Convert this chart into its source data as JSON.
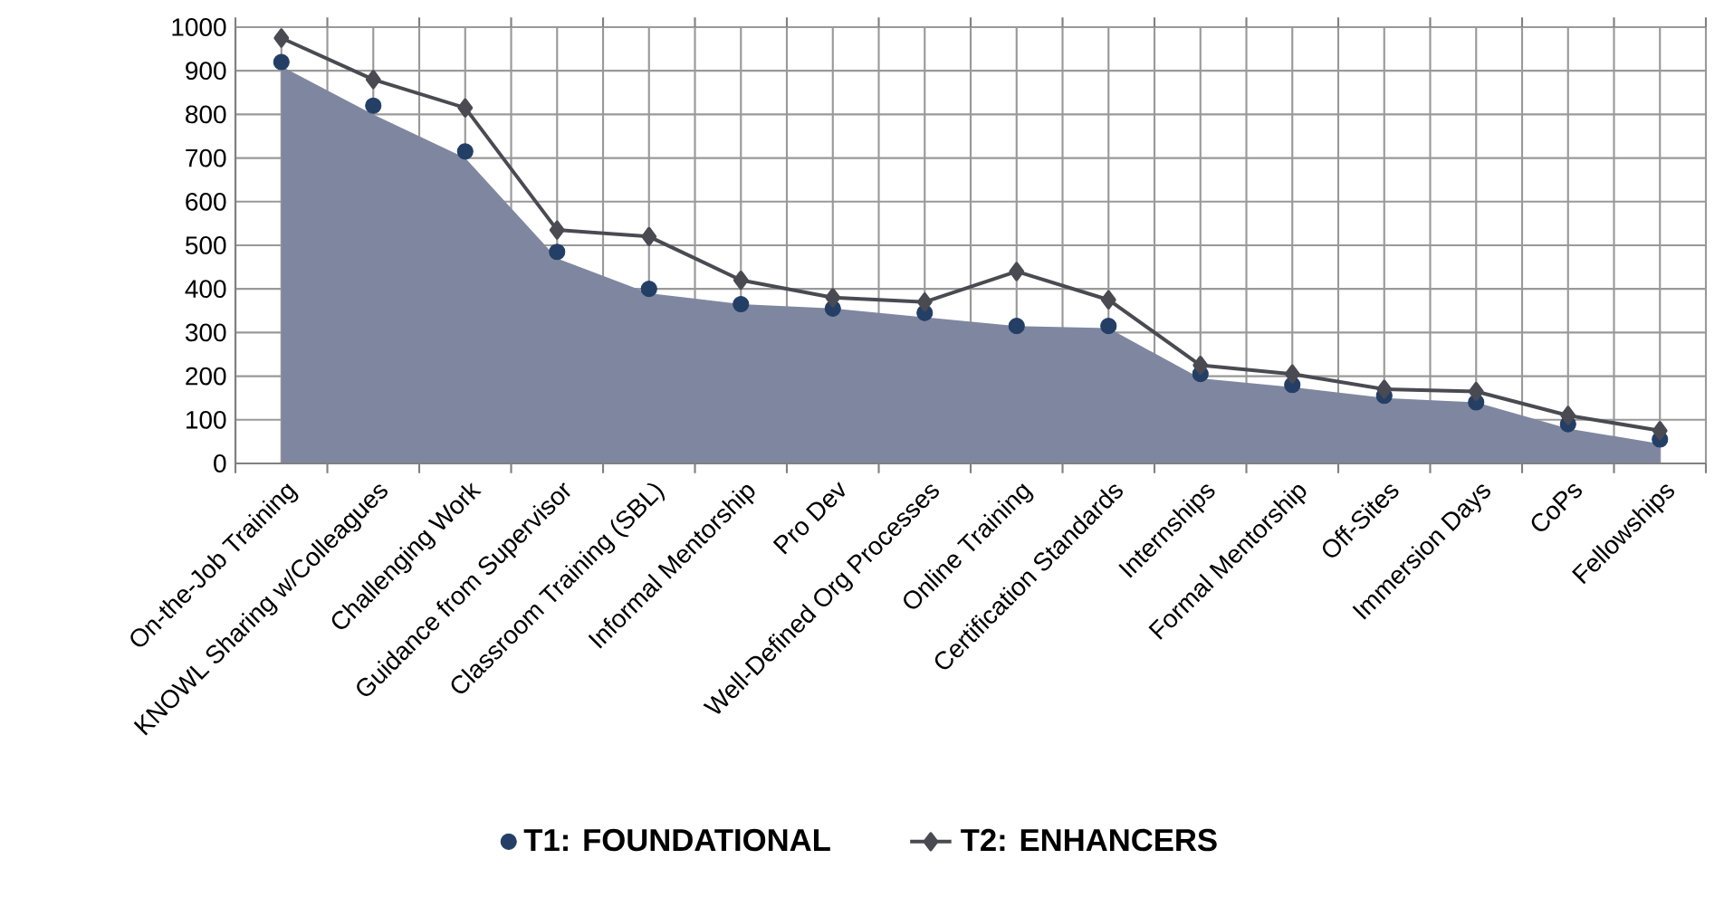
{
  "chart_data": {
    "type": "line",
    "categories": [
      "On-the-Job Training",
      "KNOWL Sharing w/Colleagues",
      "Challenging Work",
      "Guidance from Supervisor",
      "Classroom Training (SBL)",
      "Informal Mentorship",
      "Pro Dev",
      "Well-Defined Org Processes",
      "Online Training",
      "Certification Standards",
      "Internships",
      "Formal Mentorship",
      "Off-Sites",
      "Immersion Days",
      "CoPs",
      "Fellowships"
    ],
    "series": [
      {
        "type": "area",
        "color": "#7f87a0",
        "values": [
          910,
          800,
          700,
          470,
          390,
          365,
          355,
          335,
          315,
          310,
          195,
          175,
          150,
          140,
          80,
          45
        ]
      },
      {
        "type": "scatter",
        "name": "T1: FOUNDATIONAL",
        "color": "#243f66",
        "marker": "circle",
        "values": [
          920,
          820,
          715,
          485,
          400,
          365,
          355,
          345,
          315,
          315,
          205,
          180,
          155,
          140,
          90,
          55
        ]
      },
      {
        "name": "T2: ENHANCERS",
        "color": "#4a4a52",
        "marker": "diamond",
        "values": [
          975,
          880,
          815,
          535,
          520,
          420,
          380,
          370,
          440,
          375,
          225,
          205,
          170,
          165,
          110,
          75
        ]
      }
    ],
    "ylim": [
      0,
      1000
    ],
    "yticks": [
      0,
      100,
      200,
      300,
      400,
      500,
      600,
      700,
      800,
      900,
      1000
    ],
    "grid": true,
    "legend": "bottom"
  }
}
